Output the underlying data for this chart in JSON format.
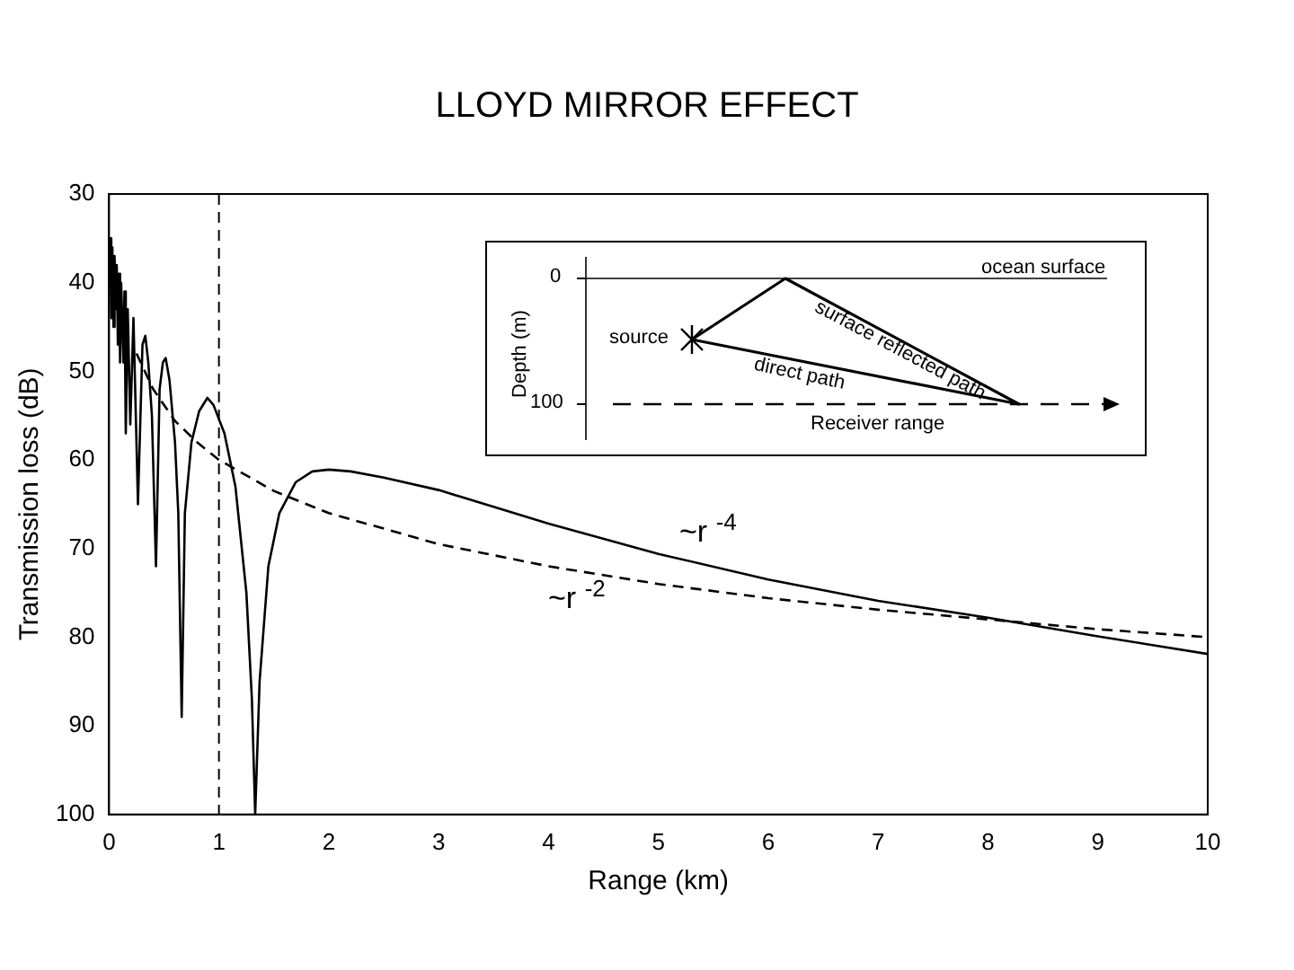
{
  "chart_data": {
    "type": "line",
    "title": "LLOYD MIRROR EFFECT",
    "xlabel": "Range (km)",
    "ylabel": "Transmission loss (dB)",
    "xlim": [
      0,
      10
    ],
    "xticks": [
      0,
      1,
      2,
      3,
      4,
      5,
      6,
      7,
      8,
      9,
      10
    ],
    "ylim": [
      100,
      30
    ],
    "yticks": [
      30,
      40,
      50,
      60,
      70,
      80,
      90,
      100
    ],
    "grid": false,
    "legend": false,
    "marker": "none",
    "series": [
      {
        "color": "#000000",
        "line_style": "solid",
        "x": [
          0,
          0.01,
          0.02,
          0.03,
          0.04,
          0.05,
          0.06,
          0.07,
          0.08,
          0.09,
          0.1,
          0.11,
          0.13,
          0.14,
          0.152,
          0.17,
          0.193,
          0.222,
          0.263,
          0.304,
          0.33,
          0.357,
          0.39,
          0.427,
          0.46,
          0.49,
          0.515,
          0.55,
          0.6,
          0.63,
          0.661,
          0.69,
          0.75,
          0.82,
          0.895,
          0.95,
          1.05,
          1.15,
          1.25,
          1.3,
          1.33,
          1.37,
          1.45,
          1.55,
          1.7,
          1.85,
          2,
          2.2,
          2.5,
          3,
          4,
          5,
          6,
          7,
          8,
          9,
          10
        ],
        "values": [
          38,
          35,
          44,
          36,
          45,
          37,
          43,
          38,
          47,
          39,
          49,
          40,
          49,
          41,
          57,
          43,
          56,
          44,
          65,
          47,
          46,
          49,
          55,
          72,
          52,
          49,
          48.5,
          51,
          58,
          66,
          89,
          66,
          58,
          54.5,
          53,
          53.8,
          57,
          63,
          75,
          87,
          100,
          85,
          72,
          66,
          62.5,
          61.3,
          61.1,
          61.3,
          62,
          63.4,
          67.2,
          70.6,
          73.5,
          75.9,
          77.8,
          79.9,
          81.9
        ]
      },
      {
        "color": "#000000",
        "line_style": "dashed",
        "x": [
          0.25,
          0.4,
          0.6,
          0.8,
          1,
          1.5,
          2,
          3,
          4,
          5,
          6,
          7,
          8,
          9,
          10
        ],
        "values": [
          48,
          52,
          55.6,
          58,
          60,
          63.5,
          66,
          69.5,
          72,
          74,
          75.6,
          76.9,
          78,
          79.1,
          80
        ]
      }
    ],
    "ref_lines": [
      {
        "axis": "x",
        "value": 1,
        "color": "#000000",
        "line_style": "dashed"
      }
    ],
    "annotations": [
      "~r $^{-4}$",
      "~r $^{-2}$",
      "Depth (m)",
      "0",
      "100",
      "source",
      "ocean surface",
      "surface reflected path",
      "direct path",
      "Receiver range"
    ]
  }
}
